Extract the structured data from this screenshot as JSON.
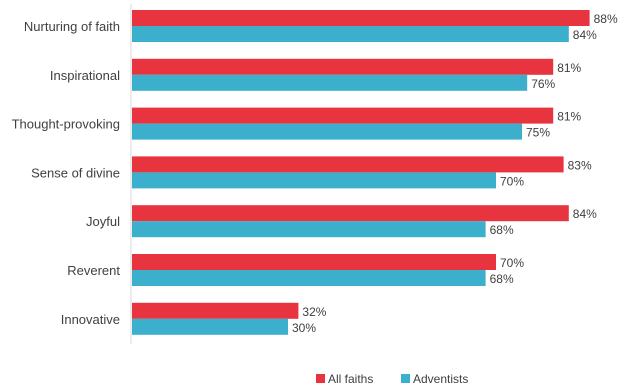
{
  "chart_data": {
    "type": "bar",
    "orientation": "horizontal",
    "categories": [
      "Nurturing of faith",
      "Inspirational",
      "Thought-provoking",
      "Sense of divine",
      "Joyful",
      "Reverent",
      "Innovative"
    ],
    "series": [
      {
        "name": "All faiths",
        "values": [
          88,
          81,
          81,
          83,
          84,
          70,
          32
        ],
        "color": "#E8343E"
      },
      {
        "name": "Adventists",
        "values": [
          84,
          76,
          75,
          70,
          68,
          68,
          30
        ],
        "color": "#3BAFCC"
      }
    ],
    "value_suffix": "%",
    "xlim": [
      0,
      100
    ],
    "grid": false,
    "legend_position": "bottom"
  }
}
